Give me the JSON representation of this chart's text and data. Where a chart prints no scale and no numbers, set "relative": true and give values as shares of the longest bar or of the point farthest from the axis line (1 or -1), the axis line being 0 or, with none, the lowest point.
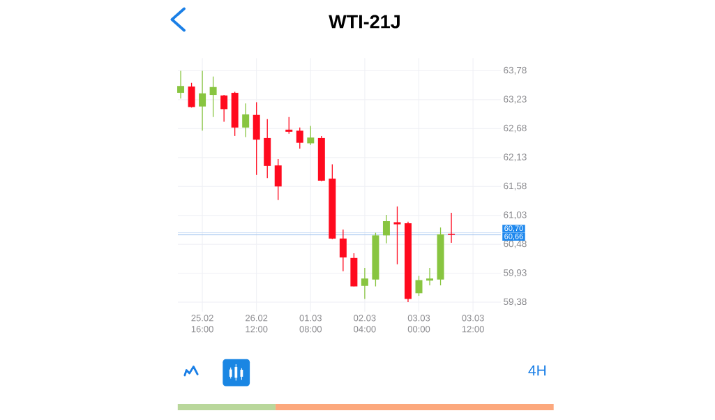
{
  "chart_data": [
    {
      "type": "candlestick",
      "title": "WTI-21J",
      "annotations": [
        "4H"
      ],
      "categories": [
        null,
        null,
        "25.02 16:00",
        null,
        null,
        null,
        null,
        "26.02 12:00",
        null,
        null,
        null,
        null,
        "01.03 08:00",
        null,
        null,
        null,
        null,
        "02.03 04:00",
        null,
        null,
        null,
        null,
        "03.03 00:00",
        null,
        null,
        null,
        null,
        "03.03 12:00"
      ],
      "ohlc": [
        [
          63.36,
          63.78,
          63.25,
          63.49
        ],
        [
          63.48,
          63.55,
          63.08,
          63.09
        ],
        [
          63.1,
          63.78,
          62.64,
          63.35
        ],
        [
          63.32,
          63.67,
          62.9,
          63.47
        ],
        [
          63.31,
          63.32,
          62.81,
          63.05
        ],
        [
          63.36,
          63.38,
          62.54,
          62.7
        ],
        [
          62.7,
          63.16,
          62.52,
          62.95
        ],
        [
          62.94,
          63.18,
          61.8,
          62.47
        ],
        [
          62.5,
          62.86,
          61.74,
          61.97
        ],
        [
          61.98,
          62.1,
          61.32,
          61.58
        ],
        [
          62.66,
          62.9,
          62.58,
          62.62
        ],
        [
          62.64,
          62.7,
          62.3,
          62.41
        ],
        [
          62.4,
          62.73,
          62.37,
          62.51
        ],
        [
          62.5,
          62.54,
          61.68,
          61.69
        ],
        [
          61.73,
          62.0,
          60.58,
          60.59
        ],
        [
          60.59,
          60.76,
          59.97,
          60.23
        ],
        [
          60.22,
          60.31,
          59.68,
          59.68
        ],
        [
          59.69,
          60.03,
          59.44,
          59.83
        ],
        [
          59.81,
          60.7,
          59.68,
          60.65
        ],
        [
          60.65,
          61.04,
          60.5,
          60.92
        ],
        [
          60.9,
          61.2,
          60.1,
          60.86
        ],
        [
          60.88,
          60.91,
          59.38,
          59.44
        ],
        [
          59.55,
          59.88,
          59.5,
          59.8
        ],
        [
          59.79,
          60.03,
          59.7,
          59.83
        ],
        [
          59.81,
          60.8,
          59.7,
          60.67
        ],
        [
          60.68,
          61.08,
          60.51,
          60.66
        ],
        null,
        null
      ],
      "colors": [
        "#88c540",
        "#ff0a1e",
        "#88c540",
        "#88c540",
        "#ff0a1e",
        "#ff0a1e",
        "#88c540",
        "#ff0a1e",
        "#ff0a1e",
        "#ff0a1e",
        "#ff0a1e",
        "#ff0a1e",
        "#88c540",
        "#ff0a1e",
        "#ff0a1e",
        "#ff0a1e",
        "#ff0a1e",
        "#88c540",
        "#88c540",
        "#88c540",
        "#ff0a1e",
        "#ff0a1e",
        "#88c540",
        "#88c540",
        "#88c540",
        "#ff0a1e",
        null,
        null
      ],
      "ylim": [
        59.2,
        64.02
      ],
      "yticks": [
        {
          "value": 59.38,
          "label": "59,38"
        },
        {
          "value": 59.93,
          "label": "59,93"
        },
        {
          "value": 60.48,
          "label": "60,48"
        },
        {
          "value": 61.03,
          "label": "61,03"
        },
        {
          "value": 61.58,
          "label": "61,58"
        },
        {
          "value": 62.13,
          "label": "62,13"
        },
        {
          "value": 62.68,
          "label": "62,68"
        },
        {
          "value": 63.23,
          "label": "63,23"
        },
        {
          "value": 63.78,
          "label": "63,78"
        }
      ],
      "grid": true,
      "ref_lines": [
        {
          "axis": "y",
          "value": 60.7,
          "label": "60,70",
          "color": "#cddff7"
        },
        {
          "axis": "y",
          "value": 60.66,
          "label": "60,66",
          "color": "#9fc3ef"
        }
      ]
    },
    {
      "type": "bar",
      "orientation": "horizontal",
      "stacked": true,
      "relative": true,
      "categories": [
        null
      ],
      "series": [
        {
          "color": "#b9d79b",
          "values": [
            0.26
          ]
        },
        {
          "color": "#fca87d",
          "values": [
            0.74
          ]
        }
      ]
    }
  ]
}
